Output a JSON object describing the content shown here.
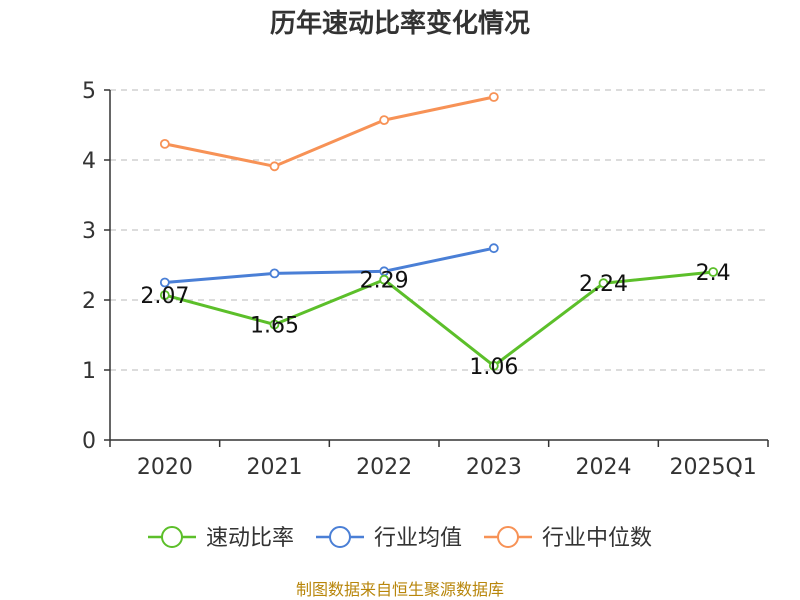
{
  "chart_data": {
    "type": "line",
    "title": "历年速动比率变化情况",
    "categories": [
      "2020",
      "2021",
      "2022",
      "2023",
      "2024",
      "2025Q1"
    ],
    "y_ticks": [
      "0",
      "1",
      "2",
      "3",
      "4",
      "5"
    ],
    "ylim": [
      0,
      5
    ],
    "grid": true,
    "legend_position": "bottom",
    "series": [
      {
        "name": "速动比率",
        "color": "#5cbf2a",
        "values": [
          2.07,
          1.65,
          2.29,
          1.06,
          2.24,
          2.4
        ],
        "labels": [
          "2.07",
          "1.65",
          "2.29",
          "1.06",
          "2.24",
          "2.4"
        ]
      },
      {
        "name": "行业均值",
        "color": "#4a7fd6",
        "values": [
          2.25,
          2.38,
          2.41,
          2.74,
          null,
          null
        ]
      },
      {
        "name": "行业中位数",
        "color": "#f79256",
        "values": [
          4.23,
          3.91,
          4.57,
          4.9,
          null,
          null
        ]
      }
    ]
  },
  "footer": {
    "source": "制图数据来自恒生聚源数据库"
  }
}
